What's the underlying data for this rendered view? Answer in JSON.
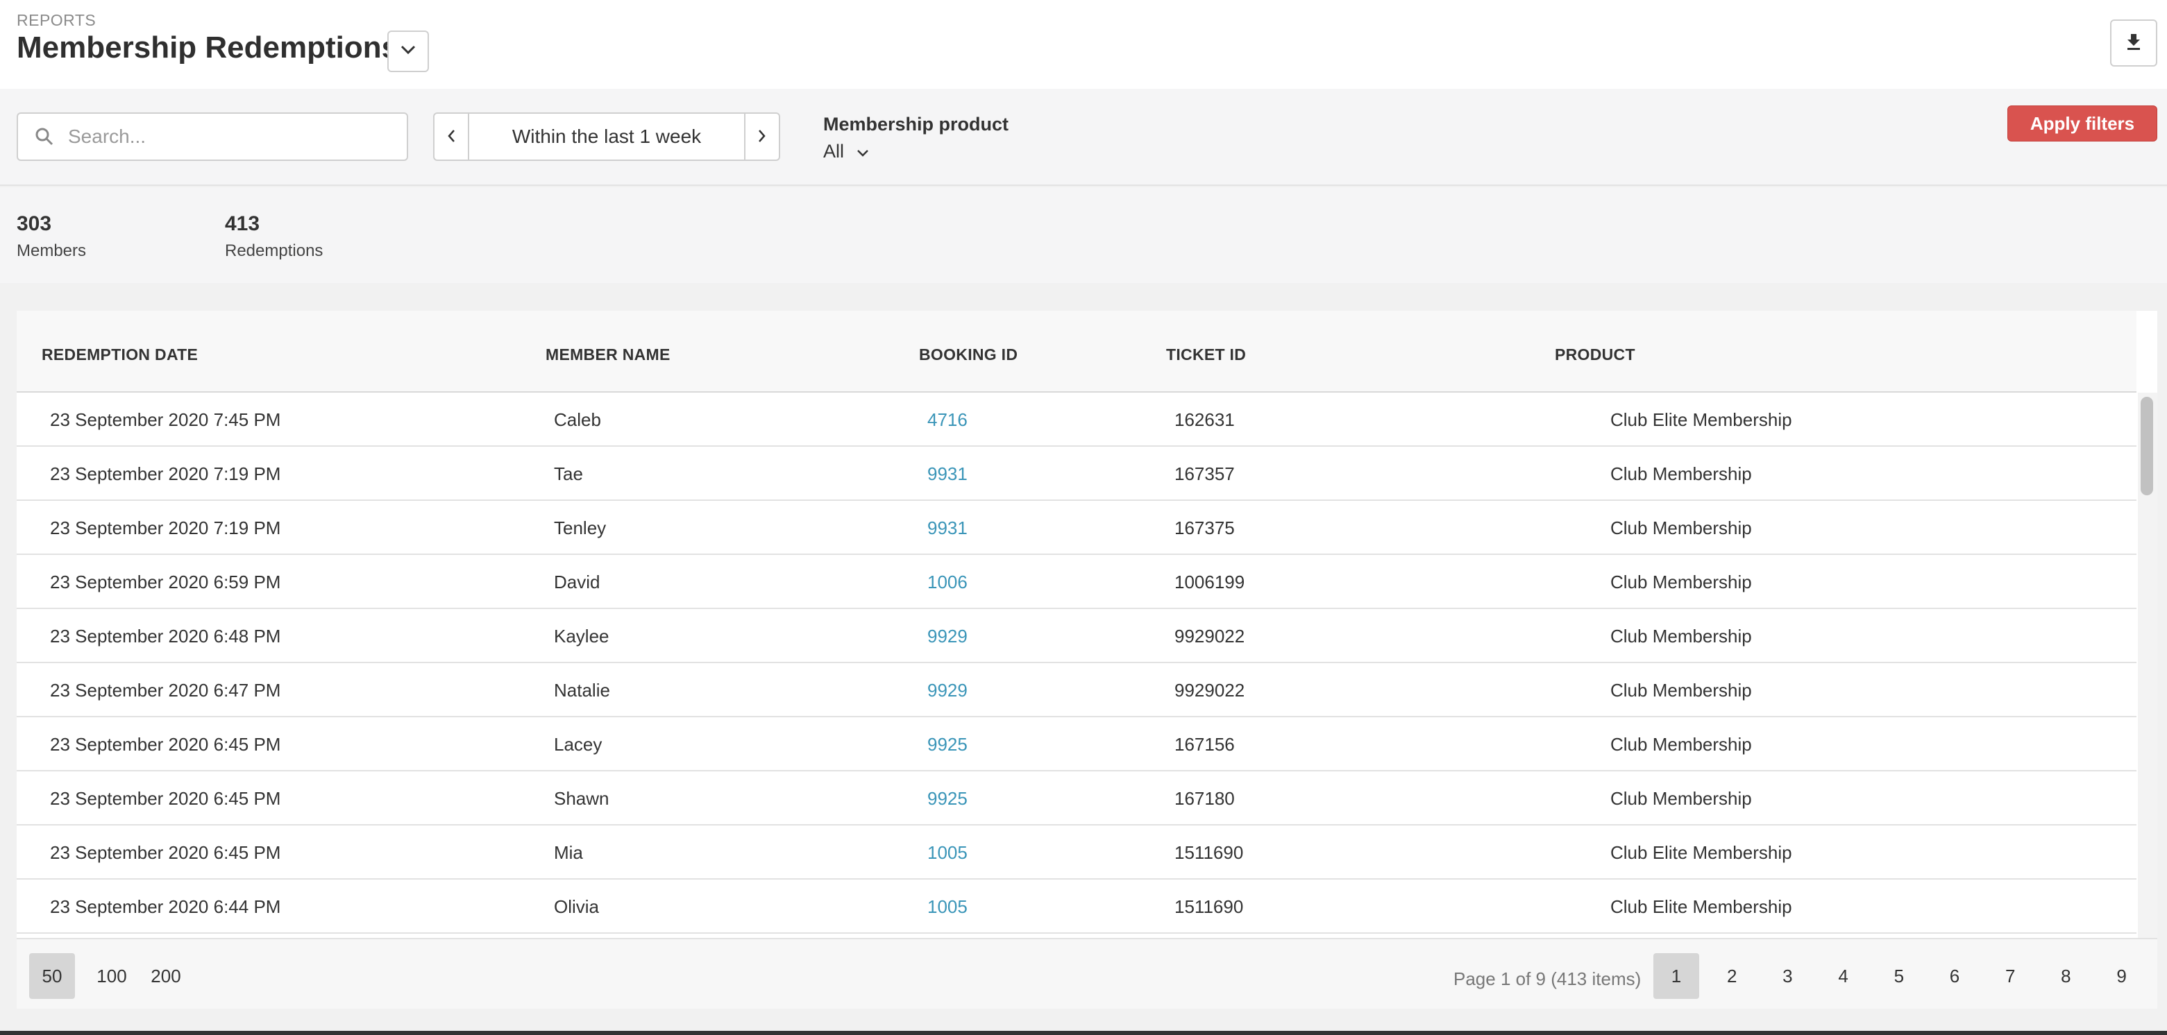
{
  "header": {
    "eyebrow": "REPORTS",
    "title": "Membership Redemptions",
    "title_dropdown_icon": "chevron-down-icon",
    "download_icon": "download-icon"
  },
  "filters": {
    "search": {
      "placeholder": "Search...",
      "value": ""
    },
    "date_range": {
      "label": "Within the last 1 week",
      "prev_icon": "chevron-left-icon",
      "next_icon": "chevron-right-icon"
    },
    "membership_product": {
      "label": "Membership product",
      "selected": "All"
    },
    "apply_label": "Apply filters"
  },
  "stats": [
    {
      "value": "303",
      "label": "Members"
    },
    {
      "value": "413",
      "label": "Redemptions"
    }
  ],
  "table": {
    "columns": [
      "REDEMPTION DATE",
      "MEMBER NAME",
      "BOOKING ID",
      "TICKET ID",
      "PRODUCT"
    ],
    "rows": [
      {
        "date": "23 September 2020 7:45 PM",
        "member": "Caleb",
        "booking": "4716",
        "ticket": "162631",
        "product": "Club Elite Membership"
      },
      {
        "date": "23 September 2020 7:19 PM",
        "member": "Tae",
        "booking": "9931",
        "ticket": "167357",
        "product": "Club Membership"
      },
      {
        "date": "23 September 2020 7:19 PM",
        "member": "Tenley",
        "booking": "9931",
        "ticket": "167375",
        "product": "Club Membership"
      },
      {
        "date": "23 September 2020 6:59 PM",
        "member": "David",
        "booking": "1006",
        "ticket": "1006199",
        "product": "Club Membership"
      },
      {
        "date": "23 September 2020 6:48 PM",
        "member": "Kaylee",
        "booking": "9929",
        "ticket": "9929022",
        "product": "Club Membership"
      },
      {
        "date": "23 September 2020 6:47 PM",
        "member": "Natalie",
        "booking": "9929",
        "ticket": "9929022",
        "product": "Club Membership"
      },
      {
        "date": "23 September 2020 6:45 PM",
        "member": "Lacey",
        "booking": "9925",
        "ticket": "167156",
        "product": "Club Membership"
      },
      {
        "date": "23 September 2020 6:45 PM",
        "member": "Shawn",
        "booking": "9925",
        "ticket": "167180",
        "product": "Club Membership"
      },
      {
        "date": "23 September 2020 6:45 PM",
        "member": "Mia",
        "booking": "1005",
        "ticket": "1511690",
        "product": "Club Elite Membership"
      },
      {
        "date": "23 September 2020 6:44 PM",
        "member": "Olivia",
        "booking": "1005",
        "ticket": "1511690",
        "product": "Club Elite Membership"
      }
    ]
  },
  "pagination": {
    "page_sizes": [
      "50",
      "100",
      "200"
    ],
    "active_size": "50",
    "info": "Page 1 of 9 (413 items)",
    "pages": [
      "1",
      "2",
      "3",
      "4",
      "5",
      "6",
      "7",
      "8",
      "9"
    ],
    "active_page": "1"
  },
  "colors": {
    "accent_red": "#d9534f",
    "link_blue": "#3a95b8"
  }
}
